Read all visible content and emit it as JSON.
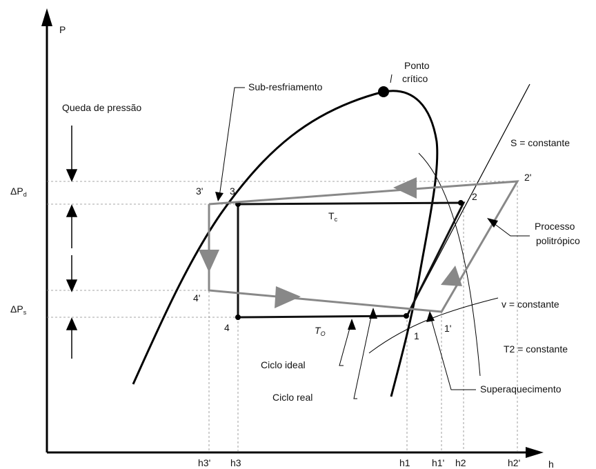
{
  "axes": {
    "y_label": "P",
    "x_label": "h"
  },
  "labels": {
    "critical_point_line1": "Ponto",
    "critical_point_line2": "crítico",
    "subcooling": "Sub-resfriamento",
    "pressure_drop": "Queda de pressão",
    "entropy_const": "S = constante",
    "polytropic_line1": "Processo",
    "polytropic_line2": "politrópico",
    "volume_const": "v = constante",
    "temp_const": "T2 = constante",
    "ideal_cycle": "Ciclo ideal",
    "real_cycle": "Ciclo real",
    "superheating": "Superaquecimento",
    "tc_base": "T",
    "tc_sub": "c",
    "to_base": "T",
    "to_sub": "O",
    "dpd_base": "ΔP",
    "dpd_sub": "d",
    "dps_base": "ΔP",
    "dps_sub": "s"
  },
  "points": {
    "p1": "1",
    "p1p": "1'",
    "p2": "2",
    "p2p": "2'",
    "p3": "3",
    "p3p": "3'",
    "p4": "4",
    "p4p": "4'"
  },
  "x_ticks": {
    "h3p": "h3'",
    "h3": "h3",
    "h1": "h1",
    "h1p": "h1'",
    "h2": "h2",
    "h2p": "h2'"
  }
}
